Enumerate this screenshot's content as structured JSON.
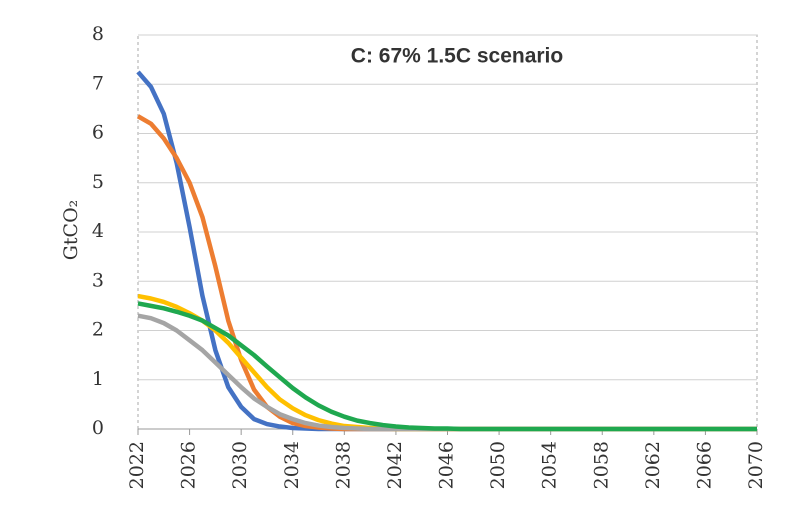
{
  "chart_data": {
    "type": "line",
    "title": "C: 67% 1.5C scenario",
    "y_label": "GtCO₂",
    "x": [
      2022,
      2023,
      2024,
      2025,
      2026,
      2027,
      2028,
      2029,
      2030,
      2031,
      2032,
      2033,
      2034,
      2035,
      2036,
      2037,
      2038,
      2039,
      2040,
      2041,
      2042,
      2043,
      2044,
      2045,
      2046,
      2047,
      2048,
      2049,
      2050,
      2070
    ],
    "series": [
      {
        "color": "#4472c4",
        "values": [
          7.25,
          6.95,
          6.4,
          5.4,
          4.1,
          2.7,
          1.6,
          0.85,
          0.45,
          0.2,
          0.1,
          0.05,
          0.02,
          0.01,
          0,
          0,
          0,
          0,
          0,
          0,
          0,
          0,
          0,
          0,
          0,
          0,
          0,
          0,
          0,
          0
        ]
      },
      {
        "color": "#ed7d31",
        "values": [
          6.35,
          6.2,
          5.9,
          5.5,
          5.0,
          4.3,
          3.3,
          2.2,
          1.4,
          0.8,
          0.45,
          0.25,
          0.12,
          0.06,
          0.03,
          0.01,
          0,
          0,
          0,
          0,
          0,
          0,
          0,
          0,
          0,
          0,
          0,
          0,
          0,
          0
        ]
      },
      {
        "color": "#ffc000",
        "values": [
          2.7,
          2.65,
          2.58,
          2.48,
          2.35,
          2.2,
          2.0,
          1.75,
          1.45,
          1.15,
          0.85,
          0.6,
          0.42,
          0.28,
          0.18,
          0.11,
          0.06,
          0.04,
          0.02,
          0.01,
          0,
          0,
          0,
          0,
          0,
          0,
          0,
          0,
          0,
          0
        ]
      },
      {
        "color": "#a5a5a5",
        "values": [
          2.3,
          2.25,
          2.15,
          2.0,
          1.8,
          1.6,
          1.35,
          1.1,
          0.85,
          0.62,
          0.45,
          0.3,
          0.2,
          0.12,
          0.07,
          0.04,
          0.02,
          0.01,
          0,
          0,
          0,
          0,
          0,
          0,
          0,
          0,
          0,
          0,
          0,
          0
        ]
      },
      {
        "color": "#1fa84f",
        "values": [
          2.55,
          2.5,
          2.45,
          2.38,
          2.3,
          2.2,
          2.05,
          1.9,
          1.7,
          1.5,
          1.27,
          1.05,
          0.83,
          0.64,
          0.48,
          0.35,
          0.25,
          0.17,
          0.12,
          0.08,
          0.05,
          0.03,
          0.02,
          0.01,
          0.01,
          0,
          0,
          0,
          0,
          0
        ]
      }
    ],
    "xlim": [
      2022,
      2070
    ],
    "xticks": [
      2022,
      2026,
      2030,
      2034,
      2038,
      2042,
      2046,
      2050,
      2054,
      2058,
      2062,
      2066,
      2070
    ],
    "ylim": [
      0,
      8
    ],
    "yticks": [
      0,
      1,
      2,
      3,
      4,
      5,
      6,
      7,
      8
    ],
    "grid": true
  }
}
